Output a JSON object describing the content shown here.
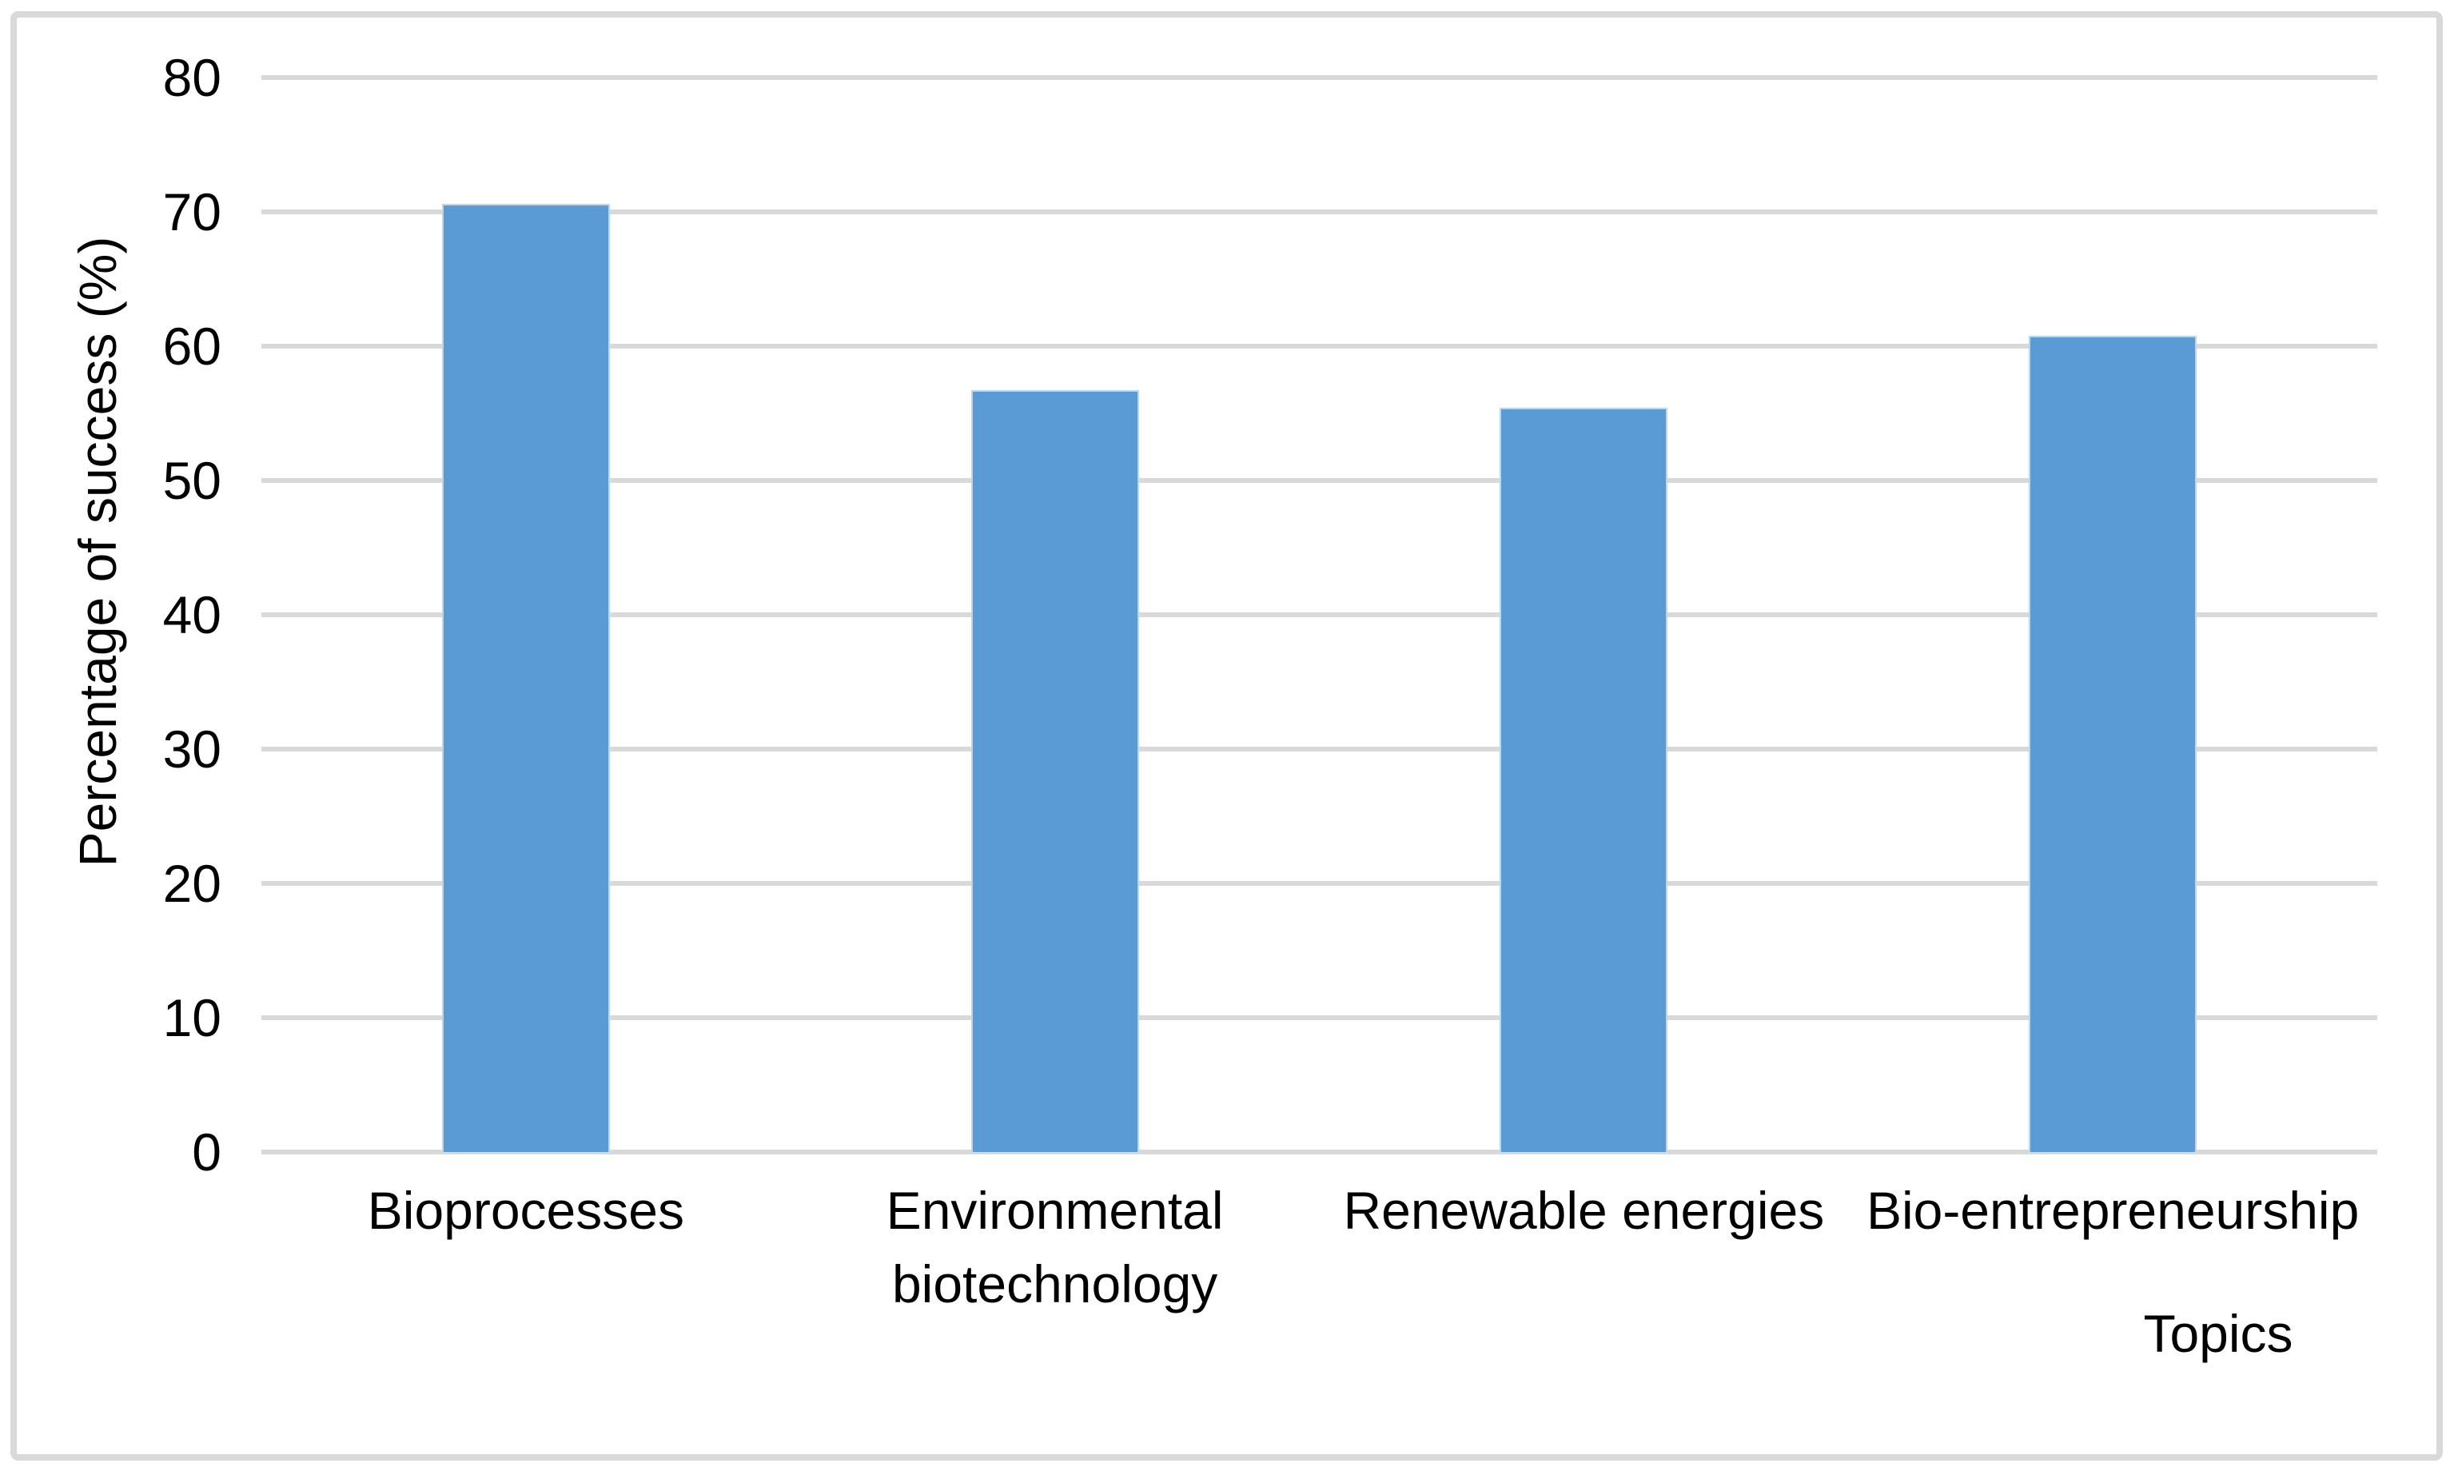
{
  "chart_data": {
    "type": "bar",
    "categories": [
      "Bioprocesses",
      "Environmental biotechnology",
      "Renewable energies",
      "Bio-entrepreneurship"
    ],
    "values": [
      70.6,
      56.7,
      55.4,
      60.8
    ],
    "title": "",
    "xlabel": "Topics",
    "ylabel": "Percentage of success (%)",
    "ylim": [
      0,
      80
    ],
    "ytick_step": 10,
    "yticks": [
      0,
      10,
      20,
      30,
      40,
      50,
      60,
      70,
      80
    ],
    "grid": true,
    "legend_position": "none",
    "bar_color": "#5B9BD5",
    "bar_edge_color": "#bcd6ee",
    "gridline_color": "#D9D9D9",
    "frame_color": "#D9D9D9",
    "text_color": "#000000"
  }
}
